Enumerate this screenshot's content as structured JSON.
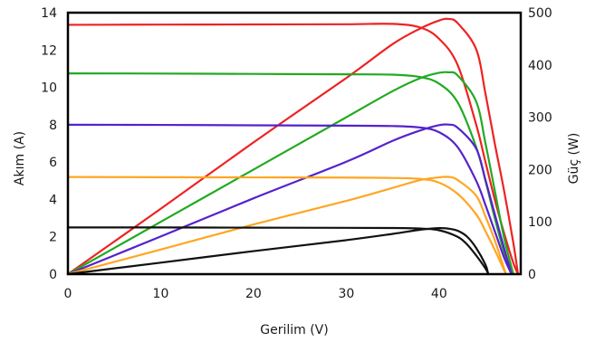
{
  "chart_data": {
    "type": "line",
    "xlabel": "Gerilim (V)",
    "ylabel_left": "Akım (A)",
    "ylabel_right": "Güç (W)",
    "xlim": [
      0,
      48.8
    ],
    "ylim_left": [
      0,
      14
    ],
    "ylim_right": [
      0,
      500
    ],
    "xticks": [
      0,
      10,
      20,
      30,
      40
    ],
    "yticks_left": [
      0,
      2,
      4,
      6,
      8,
      10,
      12,
      14
    ],
    "yticks_right": [
      0,
      100,
      200,
      300,
      400,
      500
    ],
    "grid": false,
    "series": [
      {
        "kind": "current",
        "axis": "left",
        "color": "#ee2222",
        "x": [
          0,
          10,
          20,
          30,
          35,
          38,
          40,
          42,
          44,
          45,
          46,
          47,
          48,
          48.5
        ],
        "y": [
          13.35,
          13.36,
          13.37,
          13.38,
          13.4,
          13.2,
          12.6,
          11.2,
          8.0,
          6.0,
          4.0,
          2.2,
          0.6,
          0
        ]
      },
      {
        "kind": "power",
        "axis": "right",
        "color": "#ee2222",
        "x": [
          0,
          10,
          20,
          30,
          35,
          38,
          40,
          41,
          42,
          44,
          45,
          46,
          47,
          48,
          48.5
        ],
        "y": [
          0,
          125,
          252,
          375,
          440,
          470,
          485,
          488,
          480,
          430,
          345,
          250,
          160,
          60,
          0
        ]
      },
      {
        "kind": "current",
        "axis": "left",
        "color": "#22aa22",
        "x": [
          0,
          10,
          20,
          30,
          35,
          38,
          40,
          42,
          44,
          45,
          46,
          47,
          48
        ],
        "y": [
          10.75,
          10.74,
          10.72,
          10.7,
          10.68,
          10.55,
          10.2,
          9.2,
          6.8,
          5.0,
          3.0,
          1.2,
          0
        ]
      },
      {
        "kind": "power",
        "axis": "right",
        "color": "#22aa22",
        "x": [
          0,
          10,
          20,
          30,
          35,
          38,
          40,
          41,
          42,
          44,
          45,
          46,
          47,
          48
        ],
        "y": [
          0,
          100,
          200,
          300,
          350,
          375,
          385,
          386,
          380,
          330,
          250,
          160,
          70,
          0
        ]
      },
      {
        "kind": "current",
        "axis": "left",
        "color": "#5522cc",
        "x": [
          0,
          10,
          20,
          30,
          35,
          38,
          40,
          42,
          44,
          45,
          46,
          47,
          47.8
        ],
        "y": [
          8.0,
          7.99,
          7.97,
          7.95,
          7.93,
          7.85,
          7.6,
          6.8,
          5.0,
          3.7,
          2.3,
          0.9,
          0
        ]
      },
      {
        "kind": "power",
        "axis": "right",
        "color": "#5522cc",
        "x": [
          0,
          10,
          20,
          30,
          35,
          38,
          40,
          41,
          42,
          44,
          45,
          46,
          47,
          47.8
        ],
        "y": [
          0,
          72,
          145,
          215,
          255,
          275,
          285,
          286,
          280,
          240,
          180,
          115,
          50,
          0
        ]
      },
      {
        "kind": "current",
        "axis": "left",
        "color": "#ffa622",
        "x": [
          0,
          10,
          20,
          30,
          35,
          38,
          40,
          42,
          44,
          45,
          46,
          47.2
        ],
        "y": [
          5.2,
          5.19,
          5.18,
          5.17,
          5.15,
          5.1,
          4.9,
          4.3,
          3.2,
          2.3,
          1.3,
          0
        ]
      },
      {
        "kind": "power",
        "axis": "right",
        "color": "#ffa622",
        "x": [
          0,
          10,
          20,
          30,
          35,
          38,
          40,
          41,
          42,
          44,
          45,
          46,
          47.2
        ],
        "y": [
          0,
          47,
          95,
          140,
          165,
          180,
          185,
          186,
          180,
          150,
          110,
          65,
          0
        ]
      },
      {
        "kind": "current",
        "axis": "left",
        "color": "#111111",
        "x": [
          0,
          10,
          20,
          30,
          35,
          38,
          40,
          42,
          43,
          44,
          45,
          45.3
        ],
        "y": [
          2.5,
          2.5,
          2.49,
          2.48,
          2.47,
          2.44,
          2.35,
          2.0,
          1.6,
          1.0,
          0.3,
          0
        ]
      },
      {
        "kind": "power",
        "axis": "right",
        "color": "#111111",
        "x": [
          0,
          10,
          20,
          30,
          35,
          38,
          40,
          41,
          42,
          43,
          44,
          45,
          45.3
        ],
        "y": [
          0,
          22,
          44,
          65,
          77,
          85,
          88,
          87,
          83,
          72,
          50,
          18,
          0
        ]
      }
    ]
  }
}
